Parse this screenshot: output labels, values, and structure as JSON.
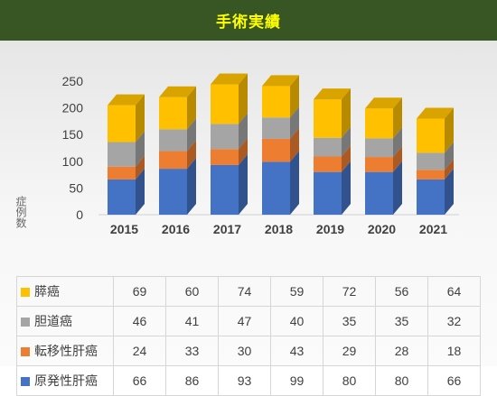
{
  "header": {
    "title": "手術実績"
  },
  "chart_data": {
    "type": "bar",
    "stacked": true,
    "three_d": true,
    "categories": [
      "2015",
      "2016",
      "2017",
      "2018",
      "2019",
      "2020",
      "2021"
    ],
    "ylabel": "症例数",
    "ylim": [
      0,
      250
    ],
    "yticks": [
      "0",
      "50",
      "100",
      "150",
      "200",
      "250"
    ],
    "grid": false,
    "legend": "data table below chart",
    "series": [
      {
        "name": "原発性肝癌",
        "color": "#4472c4",
        "values": [
          66,
          86,
          93,
          99,
          80,
          80,
          66
        ]
      },
      {
        "name": "転移性肝癌",
        "color": "#ed7d31",
        "values": [
          24,
          33,
          30,
          43,
          29,
          28,
          18
        ]
      },
      {
        "name": "胆道癌",
        "color": "#a5a5a5",
        "values": [
          46,
          41,
          47,
          40,
          35,
          35,
          32
        ]
      },
      {
        "name": "膵癌",
        "color": "#ffc000",
        "values": [
          69,
          60,
          74,
          59,
          72,
          56,
          64
        ]
      }
    ]
  }
}
